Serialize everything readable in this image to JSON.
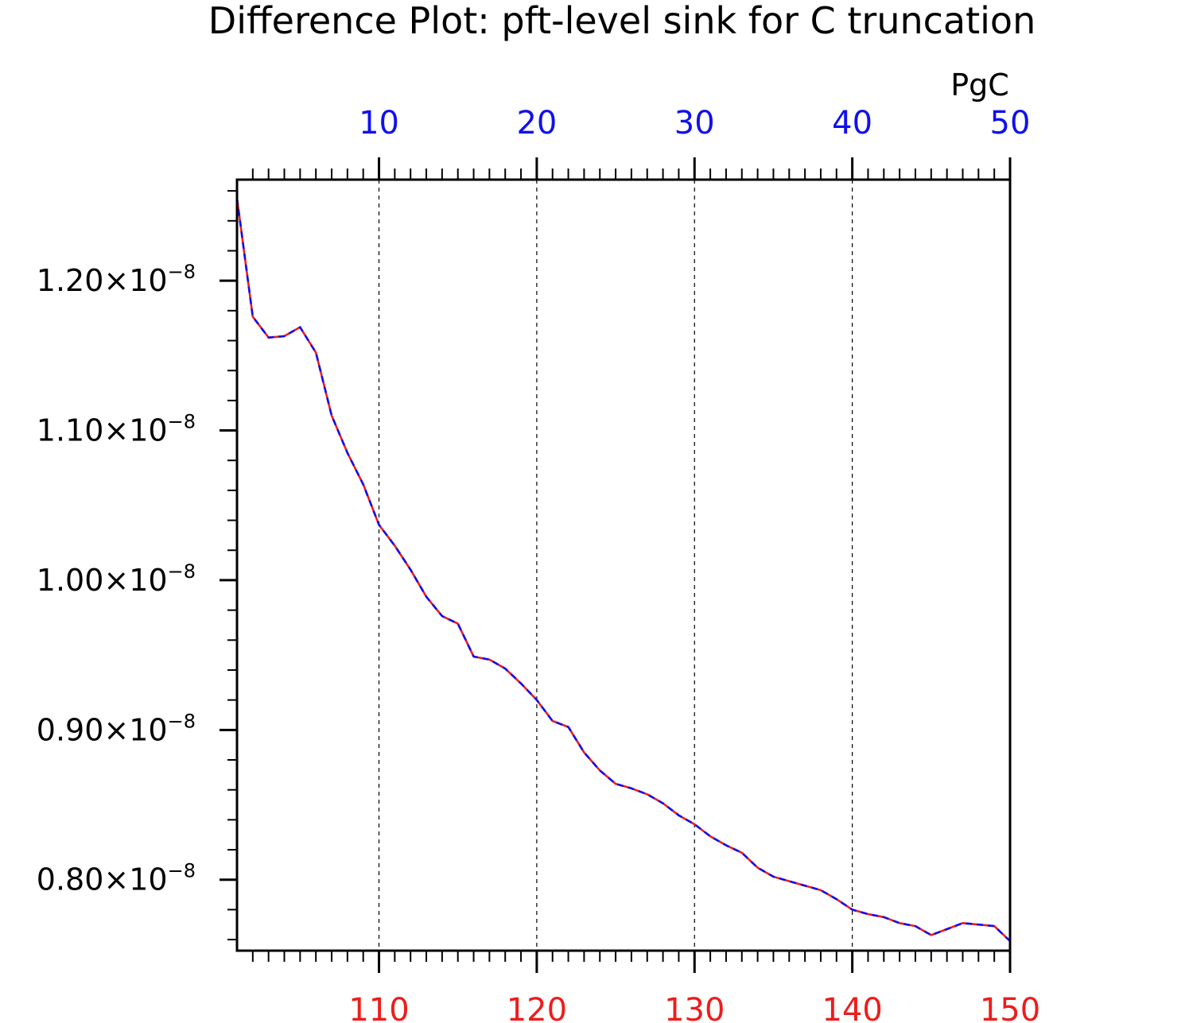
{
  "chart_data": {
    "type": "line",
    "title": "Difference Plot: pft-level sink for C truncation",
    "top_axis_unit": "PgC",
    "top_axis": {
      "range": [
        1,
        50
      ],
      "ticks": [
        10,
        20,
        30,
        40,
        50
      ],
      "tick_labels": [
        "10",
        "20",
        "30",
        "40",
        "50"
      ],
      "color": "#1010ee"
    },
    "bottom_axis": {
      "range": [
        101,
        150
      ],
      "ticks": [
        110,
        120,
        130,
        140,
        150
      ],
      "tick_labels": [
        "110",
        "120",
        "130",
        "140",
        "150"
      ],
      "color": "#ee1c1c"
    },
    "y_axis": {
      "range": [
        0.7526,
        1.2675
      ],
      "ticks": [
        0.8,
        0.9,
        1.0,
        1.1,
        1.2
      ],
      "tick_labels": [
        {
          "mantissa": "0.80×10",
          "exponent": "−8"
        },
        {
          "mantissa": "0.90×10",
          "exponent": "−8"
        },
        {
          "mantissa": "1.00×10",
          "exponent": "−8"
        },
        {
          "mantissa": "1.10×10",
          "exponent": "−8"
        },
        {
          "mantissa": "1.20×10",
          "exponent": "−8"
        }
      ],
      "scale": "1e-8"
    },
    "grid": "vertical dashed at major x ticks",
    "x": [
      1,
      2,
      3,
      4,
      5,
      6,
      7,
      8,
      9,
      10,
      11,
      12,
      13,
      14,
      15,
      16,
      17,
      18,
      19,
      20,
      21,
      22,
      23,
      24,
      25,
      26,
      27,
      28,
      29,
      30,
      31,
      32,
      33,
      34,
      35,
      36,
      37,
      38,
      39,
      40,
      41,
      42,
      43,
      44,
      45,
      46,
      47,
      48,
      49,
      50
    ],
    "series": [
      {
        "color": "#ee1c1c",
        "style": "solid",
        "values": [
          1.255,
          1.176,
          1.162,
          1.163,
          1.169,
          1.152,
          1.11,
          1.085,
          1.064,
          1.037,
          1.023,
          1.007,
          0.989,
          0.976,
          0.971,
          0.949,
          0.947,
          0.941,
          0.931,
          0.92,
          0.906,
          0.902,
          0.885,
          0.873,
          0.864,
          0.861,
          0.857,
          0.851,
          0.843,
          0.837,
          0.829,
          0.823,
          0.818,
          0.808,
          0.802,
          0.799,
          0.796,
          0.793,
          0.787,
          0.78,
          0.777,
          0.775,
          0.771,
          0.769,
          0.763,
          0.767,
          0.771,
          0.77,
          0.769,
          0.759
        ]
      },
      {
        "color": "#1010ee",
        "style": "dashed",
        "values": [
          1.255,
          1.176,
          1.162,
          1.163,
          1.169,
          1.152,
          1.11,
          1.085,
          1.064,
          1.037,
          1.023,
          1.007,
          0.989,
          0.976,
          0.971,
          0.949,
          0.947,
          0.941,
          0.931,
          0.92,
          0.906,
          0.902,
          0.885,
          0.873,
          0.864,
          0.861,
          0.857,
          0.851,
          0.843,
          0.837,
          0.829,
          0.823,
          0.818,
          0.808,
          0.802,
          0.799,
          0.796,
          0.793,
          0.787,
          0.78,
          0.777,
          0.775,
          0.771,
          0.769,
          0.763,
          0.767,
          0.771,
          0.77,
          0.769,
          0.759
        ]
      }
    ]
  }
}
